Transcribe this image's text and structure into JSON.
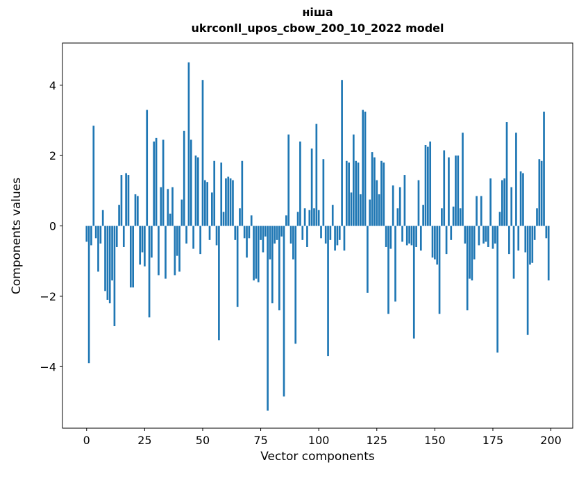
{
  "chart_data": {
    "type": "bar",
    "title": "ніша\nukrconll_upos_cbow_200_10_2022 model",
    "title_line1": "ніша",
    "title_line2": "ukrconll_upos_cbow_200_10_2022 model",
    "xlabel": "Vector components",
    "ylabel": "Components values",
    "n_components": 200,
    "xlim": [
      -10.4,
      209.4
    ],
    "ylim": [
      -5.75,
      5.2
    ],
    "xticks": [
      0,
      25,
      50,
      75,
      100,
      125,
      150,
      175,
      200
    ],
    "yticks": [
      -4,
      -2,
      0,
      2,
      4
    ],
    "grid": false,
    "legend": "none",
    "bar_color": "#1f77b4",
    "values": [
      -0.45,
      -3.9,
      -0.55,
      2.85,
      -0.35,
      -1.3,
      -0.5,
      0.45,
      -1.85,
      -2.1,
      -2.2,
      -1.55,
      -2.85,
      -0.6,
      0.6,
      1.45,
      -0.6,
      1.5,
      1.45,
      -1.75,
      -1.75,
      0.9,
      0.85,
      -1.1,
      -0.75,
      -1.15,
      3.3,
      -2.6,
      -0.9,
      2.4,
      2.5,
      -1.4,
      1.1,
      2.45,
      -1.5,
      1.05,
      0.35,
      1.1,
      -1.4,
      -0.85,
      -1.3,
      0.75,
      2.7,
      -0.5,
      4.65,
      2.45,
      -0.65,
      2.0,
      1.95,
      -0.8,
      4.15,
      1.3,
      1.25,
      -0.4,
      0.95,
      1.85,
      -0.55,
      -3.25,
      1.8,
      0.4,
      1.35,
      1.4,
      1.35,
      1.3,
      -0.4,
      -2.3,
      0.5,
      1.85,
      -0.35,
      -0.9,
      -0.35,
      0.3,
      -1.55,
      -1.5,
      -1.6,
      -0.4,
      -0.75,
      -0.3,
      -5.25,
      -0.95,
      -2.2,
      -0.5,
      -0.4,
      -2.4,
      -0.3,
      -4.85,
      0.3,
      2.6,
      -0.5,
      -0.95,
      -3.35,
      0.4,
      2.4,
      -0.4,
      0.5,
      -0.6,
      0.45,
      2.2,
      0.5,
      2.9,
      0.45,
      -0.35,
      1.9,
      -0.5,
      -3.7,
      -0.4,
      0.6,
      -0.7,
      -0.55,
      -0.4,
      4.15,
      -0.7,
      1.85,
      1.8,
      0.95,
      2.6,
      1.85,
      1.8,
      0.9,
      3.3,
      3.25,
      -1.9,
      0.75,
      2.1,
      1.95,
      1.3,
      0.9,
      1.85,
      1.8,
      -0.6,
      -2.5,
      -0.65,
      1.15,
      -2.15,
      0.5,
      1.1,
      -0.45,
      1.45,
      -0.55,
      -0.5,
      -0.55,
      -3.2,
      -0.6,
      1.3,
      -0.7,
      0.6,
      2.3,
      2.25,
      2.4,
      -0.9,
      -0.95,
      -1.1,
      -2.5,
      0.5,
      2.15,
      -0.8,
      1.95,
      -0.4,
      0.55,
      2.0,
      2.0,
      0.5,
      2.65,
      -0.5,
      -2.4,
      -1.5,
      -1.55,
      -0.95,
      0.85,
      -0.55,
      0.85,
      -0.5,
      -0.45,
      -0.6,
      1.35,
      -0.65,
      -0.5,
      -3.6,
      0.4,
      1.3,
      1.35,
      2.95,
      -0.8,
      1.1,
      -1.5,
      2.65,
      -0.7,
      1.55,
      1.5,
      -0.75,
      -3.1,
      -1.1,
      -1.05,
      -0.4,
      0.5,
      1.9,
      1.85,
      3.25,
      -0.35,
      -1.55
    ]
  }
}
